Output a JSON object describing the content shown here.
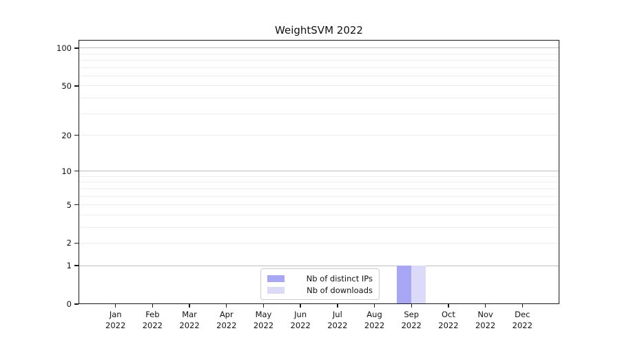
{
  "chart_data": {
    "type": "bar",
    "title": "WeightSVM 2022",
    "categories": [
      "Jan 2022",
      "Feb 2022",
      "Mar 2022",
      "Apr 2022",
      "May 2022",
      "Jun 2022",
      "Jul 2022",
      "Aug 2022",
      "Sep 2022",
      "Oct 2022",
      "Nov 2022",
      "Dec 2022"
    ],
    "x_tick_months": [
      "Jan",
      "Feb",
      "Mar",
      "Apr",
      "May",
      "Jun",
      "Jul",
      "Aug",
      "Sep",
      "Oct",
      "Nov",
      "Dec"
    ],
    "x_tick_year": "2022",
    "series": [
      {
        "name": "Nb of distinct IPs",
        "color": "#a7a7f5",
        "values": [
          0,
          0,
          0,
          0,
          0,
          0,
          0,
          0,
          1,
          0,
          0,
          0
        ]
      },
      {
        "name": "Nb of downloads",
        "color": "#dbdbf9",
        "values": [
          0,
          0,
          0,
          0,
          0,
          0,
          0,
          0,
          1,
          0,
          0,
          0
        ]
      }
    ],
    "xlabel": "",
    "ylabel": "",
    "y_scale": "log1p",
    "ylim": [
      0,
      116
    ],
    "y_ticks": [
      0,
      1,
      2,
      5,
      10,
      20,
      50,
      100
    ],
    "gridlines": {
      "major_values": [
        1,
        10,
        100
      ],
      "minor_values": [
        2,
        3,
        4,
        5,
        6,
        7,
        8,
        9,
        20,
        30,
        40,
        50,
        60,
        70,
        80,
        90
      ],
      "major_color": "#bdbdbd",
      "minor_color": "#ececec",
      "grid_on": true
    },
    "legend": {
      "position": "lower center",
      "entries": [
        "Nb of distinct IPs",
        "Nb of downloads"
      ]
    }
  }
}
